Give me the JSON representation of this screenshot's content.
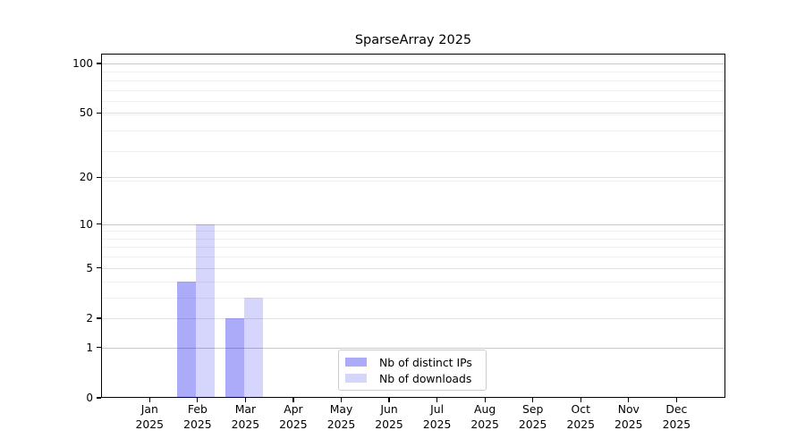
{
  "title": "SparseArray 2025",
  "chart_data": {
    "type": "bar",
    "title": "SparseArray 2025",
    "categories": [
      "Jan",
      "Feb",
      "Mar",
      "Apr",
      "May",
      "Jun",
      "Jul",
      "Aug",
      "Sep",
      "Oct",
      "Nov",
      "Dec"
    ],
    "category_year": "2025",
    "series": [
      {
        "name": "Nb of distinct IPs",
        "color": "rgba(0,0,240,0.33)",
        "values": [
          0,
          4,
          2,
          0,
          0,
          0,
          0,
          0,
          0,
          0,
          0,
          0
        ]
      },
      {
        "name": "Nb of downloads",
        "color": "rgba(0,0,240,0.16)",
        "values": [
          0,
          10,
          3,
          0,
          0,
          0,
          0,
          0,
          0,
          0,
          0,
          0
        ]
      }
    ],
    "xlabel": "",
    "ylabel": "",
    "ylim": [
      0,
      100
    ],
    "y_scale": "log1p",
    "y_ticks": [
      0,
      1,
      2,
      5,
      10,
      20,
      50,
      100
    ],
    "y_major_grid": [
      1,
      10,
      100
    ],
    "y_minor_grid": [
      3,
      4,
      6,
      7,
      8,
      9,
      19,
      29,
      39,
      49,
      59,
      69,
      79,
      89
    ],
    "grid": true,
    "legend_position": "lower center"
  },
  "colors": {
    "background": "#ffffff",
    "spine": "#000000",
    "grid_major": "#c9c9c9",
    "grid_tick": "#e2e2e2",
    "grid_minor": "#f0f0f0",
    "bar_distinct_ips": "rgba(0,0,240,0.33)",
    "bar_downloads": "rgba(0,0,240,0.16)",
    "legend_border": "#cccccc"
  }
}
